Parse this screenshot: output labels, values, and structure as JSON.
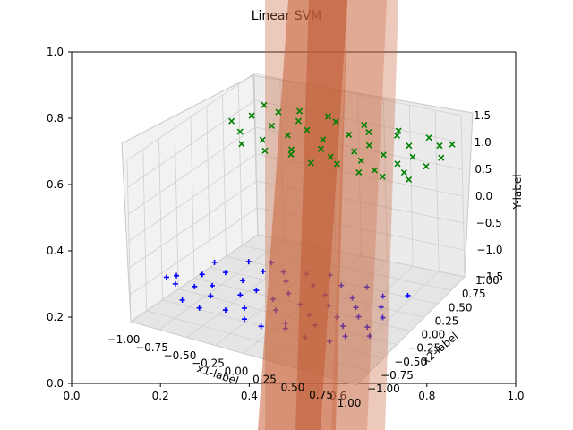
{
  "chart_data": {
    "type": "scatter",
    "title": "Linear SVM",
    "background_axes": {
      "xlim": [
        0.0,
        1.0
      ],
      "ylim": [
        0.0,
        1.0
      ],
      "xticks": [
        "0.0",
        "0.2",
        "0.4",
        "0.6",
        "0.8",
        "1.0"
      ],
      "yticks": [
        "0.0",
        "0.2",
        "0.4",
        "0.6",
        "0.8",
        "1.0"
      ]
    },
    "axes3d": {
      "xlabel": "x1-label",
      "ylabel": "x2-label",
      "zlabel": "Y-label",
      "xlabel_color": "#ff0000",
      "ylabel_color": "#008000",
      "zlabel_color": "#0000ff",
      "xlim": [
        -1.0,
        1.0
      ],
      "ylim": [
        -1.0,
        1.0
      ],
      "zlim": [
        -1.5,
        1.5
      ],
      "xticks": [
        "−1.00",
        "−0.75",
        "−0.50",
        "−0.25",
        "0.00",
        "0.25",
        "0.50",
        "0.75",
        "1.00"
      ],
      "yticks": [
        "−1.00",
        "−0.75",
        "−0.50",
        "−0.25",
        "0.00",
        "0.25",
        "0.50",
        "0.75",
        "1.00"
      ],
      "zticks": [
        "−1.5",
        "−1.0",
        "−0.5",
        "0.0",
        "0.5",
        "1.0",
        "1.5"
      ],
      "grid": true
    },
    "series": [
      {
        "marker": "+",
        "color": "#0000ff",
        "z": -1.0,
        "points": [
          [
            -0.93,
            -0.55
          ],
          [
            -0.88,
            -0.48
          ],
          [
            -0.81,
            -0.62
          ],
          [
            -0.72,
            -0.35
          ],
          [
            -0.66,
            -0.58
          ],
          [
            -0.58,
            -0.22
          ],
          [
            -0.55,
            -0.49
          ],
          [
            -0.47,
            -0.66
          ],
          [
            -0.39,
            -0.28
          ],
          [
            -0.33,
            -0.05
          ],
          [
            -0.28,
            -0.52
          ],
          [
            -0.21,
            -0.38
          ],
          [
            -0.14,
            -0.71
          ],
          [
            -0.08,
            -0.12
          ],
          [
            -0.02,
            -0.45
          ],
          [
            0.04,
            -0.3
          ],
          [
            0.09,
            -0.61
          ],
          [
            0.15,
            -0.08
          ],
          [
            0.21,
            -0.42
          ],
          [
            0.26,
            -0.77
          ],
          [
            0.31,
            -0.18
          ],
          [
            0.36,
            -0.55
          ],
          [
            0.42,
            -0.33
          ],
          [
            0.48,
            -0.68
          ],
          [
            0.53,
            -0.12
          ],
          [
            0.57,
            -0.47
          ],
          [
            0.63,
            -0.25
          ],
          [
            0.68,
            -0.58
          ],
          [
            0.72,
            -0.38
          ],
          [
            0.77,
            -0.72
          ],
          [
            0.81,
            -0.15
          ],
          [
            0.86,
            -0.5
          ],
          [
            0.9,
            -0.3
          ],
          [
            0.94,
            -0.62
          ],
          [
            -0.62,
            -0.85
          ],
          [
            -0.44,
            -0.9
          ],
          [
            -0.25,
            -0.82
          ],
          [
            -0.05,
            -0.88
          ],
          [
            0.12,
            -0.92
          ],
          [
            0.3,
            -0.85
          ],
          [
            0.5,
            -0.9
          ],
          [
            0.7,
            -0.86
          ],
          [
            -0.75,
            -0.1
          ],
          [
            -0.52,
            0.05
          ],
          [
            -0.35,
            0.12
          ],
          [
            -0.18,
            0.02
          ],
          [
            0.0,
            0.08
          ],
          [
            0.18,
            0.15
          ],
          [
            0.35,
            0.03
          ],
          [
            0.55,
            0.1
          ],
          [
            0.74,
            0.02
          ],
          [
            0.92,
            0.12
          ]
        ]
      },
      {
        "marker": "x",
        "color": "#008000",
        "z": 1.0,
        "points": [
          [
            -0.95,
            0.55
          ],
          [
            -0.86,
            0.72
          ],
          [
            -0.78,
            0.4
          ],
          [
            -0.7,
            0.88
          ],
          [
            -0.61,
            0.62
          ],
          [
            -0.54,
            0.35
          ],
          [
            -0.46,
            0.8
          ],
          [
            -0.4,
            0.52
          ],
          [
            -0.31,
            0.68
          ],
          [
            -0.24,
            0.3
          ],
          [
            -0.17,
            0.92
          ],
          [
            -0.1,
            0.58
          ],
          [
            -0.03,
            0.42
          ],
          [
            0.05,
            0.75
          ],
          [
            0.11,
            0.33
          ],
          [
            0.18,
            0.86
          ],
          [
            0.24,
            0.5
          ],
          [
            0.3,
            0.65
          ],
          [
            0.37,
            0.38
          ],
          [
            0.43,
            0.9
          ],
          [
            0.49,
            0.55
          ],
          [
            0.55,
            0.28
          ],
          [
            0.61,
            0.78
          ],
          [
            0.67,
            0.46
          ],
          [
            0.73,
            0.62
          ],
          [
            0.79,
            0.35
          ],
          [
            0.85,
            0.88
          ],
          [
            0.91,
            0.52
          ],
          [
            0.96,
            0.7
          ],
          [
            -0.65,
            0.2
          ],
          [
            -0.42,
            0.18
          ],
          [
            -0.2,
            0.22
          ],
          [
            0.02,
            0.16
          ],
          [
            0.22,
            0.24
          ],
          [
            0.45,
            0.19
          ],
          [
            0.66,
            0.21
          ],
          [
            0.88,
            0.26
          ],
          [
            -0.88,
            0.95
          ],
          [
            -0.55,
            0.97
          ],
          [
            -0.28,
            0.98
          ],
          [
            0.08,
            0.96
          ],
          [
            0.4,
            0.98
          ],
          [
            0.7,
            0.97
          ],
          [
            0.94,
            0.94
          ]
        ]
      }
    ],
    "decision_surface": {
      "color": "#c8633a",
      "description_values": {
        "x1_at": [
          0.35,
          0.95
        ],
        "slab_halfwidth": [
          0.06,
          0.1
        ]
      }
    }
  }
}
